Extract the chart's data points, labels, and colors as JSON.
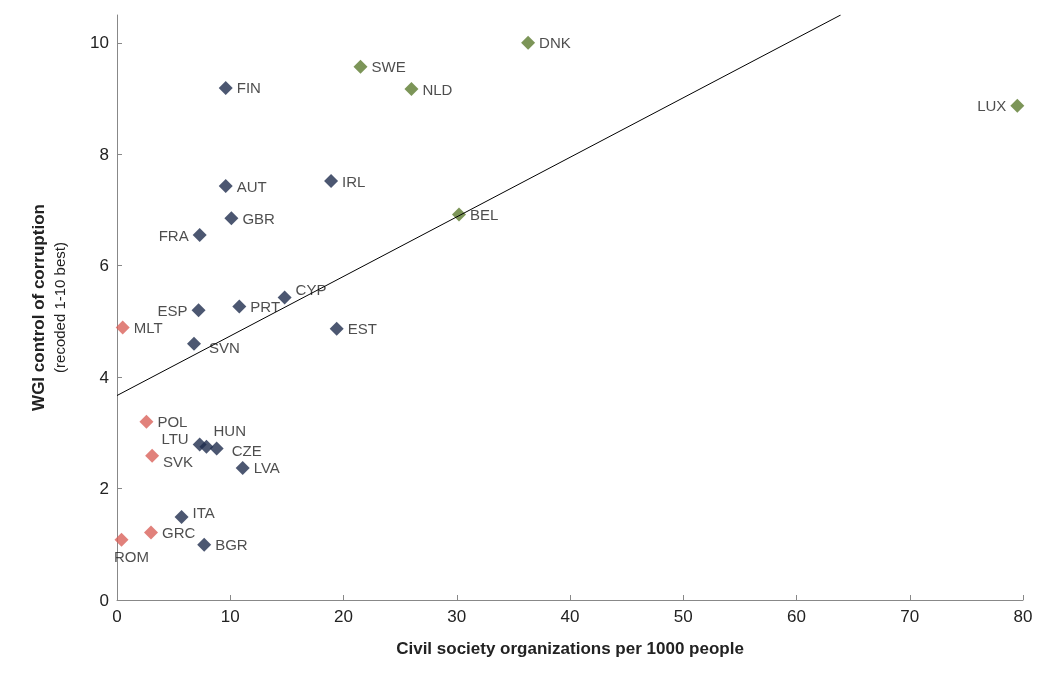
{
  "chart_data": {
    "type": "scatter",
    "xlabel": "Civil society organizations per 1000 people",
    "ylabel": "WGI control of corruption\n(recoded 1-10 best)",
    "xlim": [
      0,
      80
    ],
    "xticks": [
      0,
      10,
      20,
      30,
      40,
      50,
      60,
      70,
      80
    ],
    "ylim": [
      0,
      10.5
    ],
    "yticks": [
      0,
      2,
      4,
      6,
      8,
      10
    ],
    "grid": false,
    "marker": "diamond",
    "series": [
      {
        "color": "#5b7a2e",
        "x": [
          36.3,
          21.5,
          26.0,
          79.5,
          30.2
        ],
        "values": [
          10.0,
          9.57,
          9.17,
          8.87,
          6.92
        ],
        "value_labels": [
          "DNK",
          "SWE",
          "NLD",
          "LUX",
          "BEL"
        ]
      },
      {
        "color": "#1f2d4d",
        "x": [
          9.6,
          9.6,
          18.9,
          10.1,
          7.3,
          14.8,
          10.8,
          7.2,
          19.4,
          6.8,
          7.3,
          7.9,
          8.8,
          11.1,
          5.7,
          7.7
        ],
        "values": [
          9.19,
          7.43,
          7.52,
          6.85,
          6.55,
          5.43,
          5.27,
          5.2,
          4.87,
          4.6,
          2.79,
          2.75,
          2.72,
          2.37,
          1.49,
          0.99
        ],
        "value_labels": [
          "FIN",
          "AUT",
          "IRL",
          "GBR",
          "FRA",
          "CYP",
          "PRT",
          "ESP",
          "EST",
          "SVN",
          "LTU",
          "HUN",
          "CZE",
          "LVA",
          "ITA",
          "BGR"
        ]
      },
      {
        "color": "#d9625a",
        "x": [
          0.5,
          2.6,
          3.1,
          3.0,
          0.4
        ],
        "values": [
          4.89,
          3.2,
          2.59,
          1.21,
          1.08
        ],
        "value_labels": [
          "MLT",
          "POL",
          "SVK",
          "GRC",
          "ROM"
        ]
      },
      {
        "type": "line",
        "color": "#000000",
        "x": [
          0,
          63.9
        ],
        "values": [
          3.67,
          10.5
        ],
        "marker": "none"
      }
    ]
  }
}
